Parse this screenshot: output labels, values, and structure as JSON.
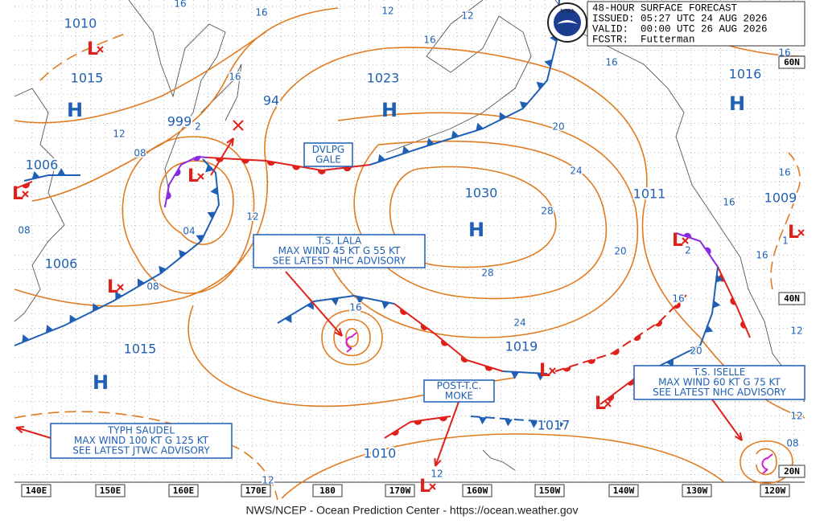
{
  "header": {
    "lines": [
      "48-HOUR SURFACE FORECAST",
      "ISSUED: 05:27 UTC 24 AUG 2026",
      "VALID:  00:00 UTC 26 AUG 2026",
      "FCSTR:  Futterman"
    ]
  },
  "logo": "NOAA",
  "footer": "NWS/NCEP - Ocean Prediction Center - https://ocean.weather.gov",
  "longitude_labels": [
    "140E",
    "150E",
    "160E",
    "170E",
    "180",
    "170W",
    "160W",
    "150W",
    "140W",
    "130W",
    "120W"
  ],
  "latitude_labels": [
    "60N",
    "40N",
    "20N"
  ],
  "pressure_labels": [
    "1010",
    "1015",
    "999",
    "94",
    "1023",
    "1016",
    "1006",
    "1030",
    "1011",
    "1009",
    "1006",
    "1015",
    "1019",
    "1017",
    "1010"
  ],
  "centers": [
    "H",
    "H",
    "H",
    "H",
    "H",
    "L",
    "L",
    "L",
    "L",
    "L",
    "L",
    "L",
    "L",
    "L"
  ],
  "isobar_labels": [
    "16",
    "16",
    "12",
    "12",
    "16",
    "16",
    "16",
    "16",
    "12",
    "08",
    "2",
    "04",
    "12",
    "08",
    "08",
    "20",
    "24",
    "28",
    "28",
    "24",
    "20",
    "16",
    "16",
    "16",
    "1",
    "2",
    "16",
    "20",
    "12",
    "16",
    "12",
    "08",
    "12",
    "12"
  ],
  "advisories": [
    {
      "lines": [
        "DVLPG",
        "GALE"
      ]
    },
    {
      "lines": [
        "T.S. LALA",
        "MAX WIND 45 KT G 55 KT",
        "SEE LATEST NHC ADVISORY"
      ]
    },
    {
      "lines": [
        "T.S. ISELLE",
        "MAX WIND 60 KT G 75 KT",
        "SEE LATEST NHC ADVISORY"
      ]
    },
    {
      "lines": [
        "POST-T.C.",
        "MOKE"
      ]
    },
    {
      "lines": [
        "TYPH SAUDEL",
        "MAX WIND 100 KT G 125 KT",
        "SEE LATEST JTWC ADVISORY"
      ]
    }
  ]
}
